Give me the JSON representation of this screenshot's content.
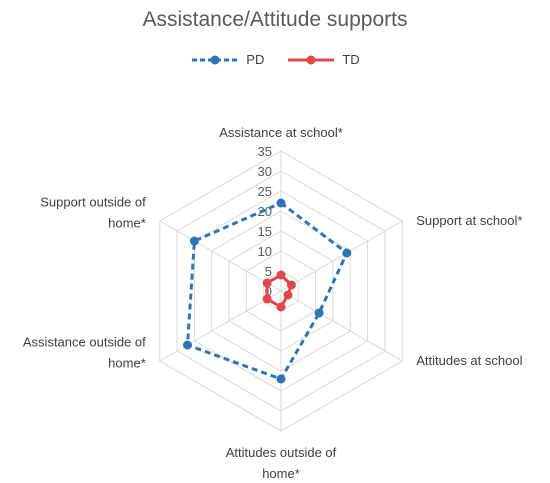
{
  "chart_data": {
    "type": "radar",
    "title": "Assistance/Attitude supports",
    "axes": [
      [
        "Assistance at school*"
      ],
      [
        "Support at school*"
      ],
      [
        "Attitudes at school"
      ],
      [
        "Attitudes outside of",
        "home*"
      ],
      [
        "Assistance outside of",
        "home*"
      ],
      [
        "Support outside of",
        "home*"
      ]
    ],
    "ticks": [
      "0",
      "5",
      "10",
      "15",
      "20",
      "25",
      "30",
      "35"
    ],
    "range": [
      0,
      35
    ],
    "grid": true,
    "legend_position": "top",
    "series": [
      {
        "name": "PD",
        "color": "#2E75B6",
        "dashed": true,
        "values": [
          22,
          19,
          11,
          22,
          27,
          25
        ]
      },
      {
        "name": "TD",
        "color": "#E0474C",
        "dashed": false,
        "values": [
          4,
          3,
          2,
          4,
          4,
          4
        ]
      }
    ]
  }
}
